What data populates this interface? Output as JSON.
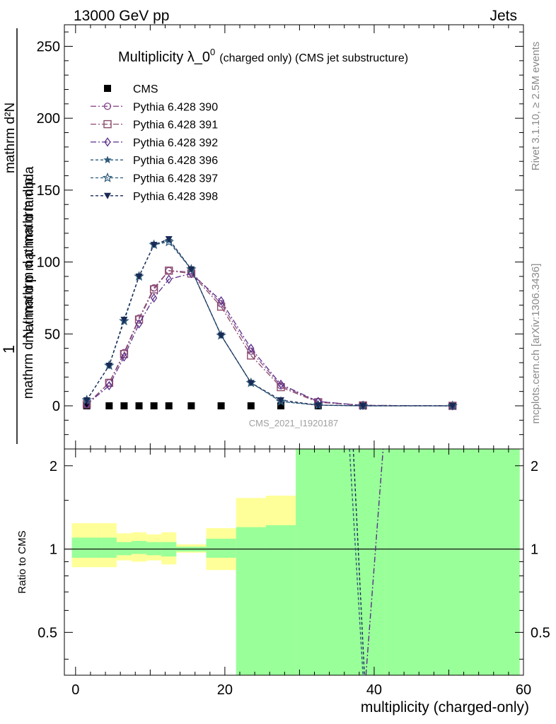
{
  "header": {
    "energy": "13000 GeV pp",
    "category": "Jets"
  },
  "side_labels": {
    "rivet": "Rivet 3.1.10, ≥ 2.5M events",
    "mcplots": "mcplots.cern.ch [arXiv:1306.3436]"
  },
  "chart_data": [
    {
      "type": "line",
      "title": "Multiplicity λ_0",
      "title_sup": "0",
      "subtitle": "(charged only) (CMS jet substructure)",
      "watermark": "CMS_2021_I1920187",
      "ylabel_numerator": "1",
      "ylabel_upper": "mathrm d²N",
      "ylabel_upper_sub": "T",
      "ylabel_upper_text": "mathrm d p  mathrm d lambda",
      "ylabel_lower": "mathrm d N / mathrm d p  mathrm d p",
      "ylabel_lower_sub": "T",
      "xlim": [
        -1.5,
        60
      ],
      "ylim": [
        -30,
        265
      ],
      "yticks": [
        0,
        50,
        100,
        150,
        200,
        250
      ],
      "legend_placement": "top-left",
      "series": [
        {
          "name": "CMS",
          "marker": "square",
          "color": "#000000",
          "x": [
            1.5,
            4.5,
            6.5,
            8.5,
            10.5,
            12.5,
            15.5,
            19.5,
            23.5,
            27.5,
            32.5,
            38.5,
            50.5
          ],
          "y": [
            0,
            0,
            0,
            0,
            0,
            0,
            0,
            0,
            0,
            0,
            0,
            0,
            0
          ]
        },
        {
          "name": "Pythia 6.428 390",
          "marker": "circle",
          "color": "#8b4f8f",
          "dash": "8,3,2,3",
          "x": [
            1.5,
            4.5,
            6.5,
            8.5,
            10.5,
            12.5,
            15.5,
            19.5,
            23.5,
            27.5,
            32.5,
            38.5,
            50.5
          ],
          "y": [
            1,
            16,
            37,
            61,
            82,
            94,
            93,
            71,
            38,
            14,
            3,
            0.3,
            0
          ]
        },
        {
          "name": "Pythia 6.428 391",
          "marker": "square-open",
          "color": "#8b4a6a",
          "dash": "8,3,2,3",
          "x": [
            1.5,
            4.5,
            6.5,
            8.5,
            10.5,
            12.5,
            15.5,
            19.5,
            23.5,
            27.5,
            32.5,
            38.5,
            50.5
          ],
          "y": [
            1,
            16,
            36,
            60,
            81,
            94,
            92,
            69,
            35,
            13,
            2.5,
            0.3,
            0
          ]
        },
        {
          "name": "Pythia 6.428 392",
          "marker": "diamond",
          "color": "#5a2f8a",
          "dash": "8,3,2,3",
          "x": [
            1.5,
            4.5,
            6.5,
            8.5,
            10.5,
            12.5,
            15.5,
            19.5,
            23.5,
            27.5,
            32.5,
            38.5,
            50.5
          ],
          "y": [
            1,
            14,
            34,
            57,
            75,
            88,
            92,
            73,
            40,
            15,
            3,
            0.3,
            0
          ]
        },
        {
          "name": "Pythia 6.428 396",
          "marker": "star-filled",
          "color": "#2d5a7a",
          "dash": "4,3",
          "x": [
            1.5,
            4.5,
            6.5,
            8.5,
            10.5,
            12.5,
            15.5,
            19.5,
            23.5,
            27.5,
            32.5,
            38.5,
            50.5
          ],
          "y": [
            4,
            28,
            59,
            90,
            112,
            115,
            95,
            49,
            16,
            3,
            0.5,
            0,
            0
          ]
        },
        {
          "name": "Pythia 6.428 397",
          "marker": "star-open",
          "color": "#2d5a7a",
          "dash": "4,3",
          "x": [
            1.5,
            4.5,
            6.5,
            8.5,
            10.5,
            12.5,
            15.5,
            19.5,
            23.5,
            27.5,
            32.5,
            38.5,
            50.5
          ],
          "y": [
            4,
            28,
            59,
            90,
            112,
            114,
            95,
            49,
            16,
            3,
            0.5,
            0,
            0
          ]
        },
        {
          "name": "Pythia 6.428 398",
          "marker": "triangle-down",
          "color": "#1a2a55",
          "dash": "4,3",
          "x": [
            1.5,
            4.5,
            6.5,
            8.5,
            10.5,
            12.5,
            15.5,
            19.5,
            23.5,
            27.5,
            32.5,
            38.5,
            50.5
          ],
          "y": [
            4,
            28,
            60,
            90,
            112,
            116,
            95,
            49,
            16,
            4,
            0.5,
            0,
            0
          ]
        }
      ]
    },
    {
      "type": "area",
      "ylabel": "Ratio to CMS",
      "xlabel": "multiplicity (charged-only)",
      "xlim": [
        -1.5,
        60
      ],
      "ylim": [
        0.35,
        2.3
      ],
      "xticks": [
        0,
        20,
        40,
        60
      ],
      "yticks": [
        0.5,
        1,
        2
      ],
      "reference_line": 1,
      "bin_edges": [
        -0.5,
        3.5,
        5.5,
        7.5,
        9.5,
        11.5,
        13.5,
        17.5,
        21.5,
        25.5,
        29.5,
        35.5,
        41.5,
        59.5
      ],
      "band_outer": {
        "name": "yellow",
        "low": [
          0.86,
          0.86,
          0.91,
          0.9,
          0.91,
          0.88,
          0.97,
          0.84,
          0.58,
          0.54,
          0.3,
          0.3,
          0.3
        ],
        "high": [
          1.24,
          1.24,
          1.14,
          1.15,
          1.13,
          1.15,
          1.04,
          1.19,
          1.53,
          1.56,
          2.3,
          2.2,
          2.3
        ]
      },
      "band_inner": {
        "name": "green",
        "low": [
          0.93,
          0.93,
          0.95,
          0.96,
          0.95,
          0.94,
          0.98,
          0.93,
          0.3,
          0.3,
          0.3,
          0.3,
          0.3
        ],
        "high": [
          1.1,
          1.1,
          1.06,
          1.07,
          1.06,
          1.06,
          1.02,
          1.09,
          1.2,
          1.22,
          2.3,
          2.3,
          2.3
        ]
      },
      "series": [
        {
          "name": "Pythia 6.428 396",
          "color": "#2d5a7a",
          "dash": "4,3",
          "x": [
            36.7,
            38.5
          ],
          "y": [
            2.3,
            0.35
          ]
        },
        {
          "name": "Pythia 6.428 398",
          "color": "#1a2a55",
          "dash": "4,3",
          "x": [
            37.2,
            38.7
          ],
          "y": [
            2.3,
            0.35
          ]
        },
        {
          "name": "Pythia 6.428 392",
          "color": "#5a2f8a",
          "dash": "8,3,2,3",
          "x": [
            38.9,
            41.2
          ],
          "y": [
            0.35,
            2.3
          ]
        }
      ]
    }
  ]
}
